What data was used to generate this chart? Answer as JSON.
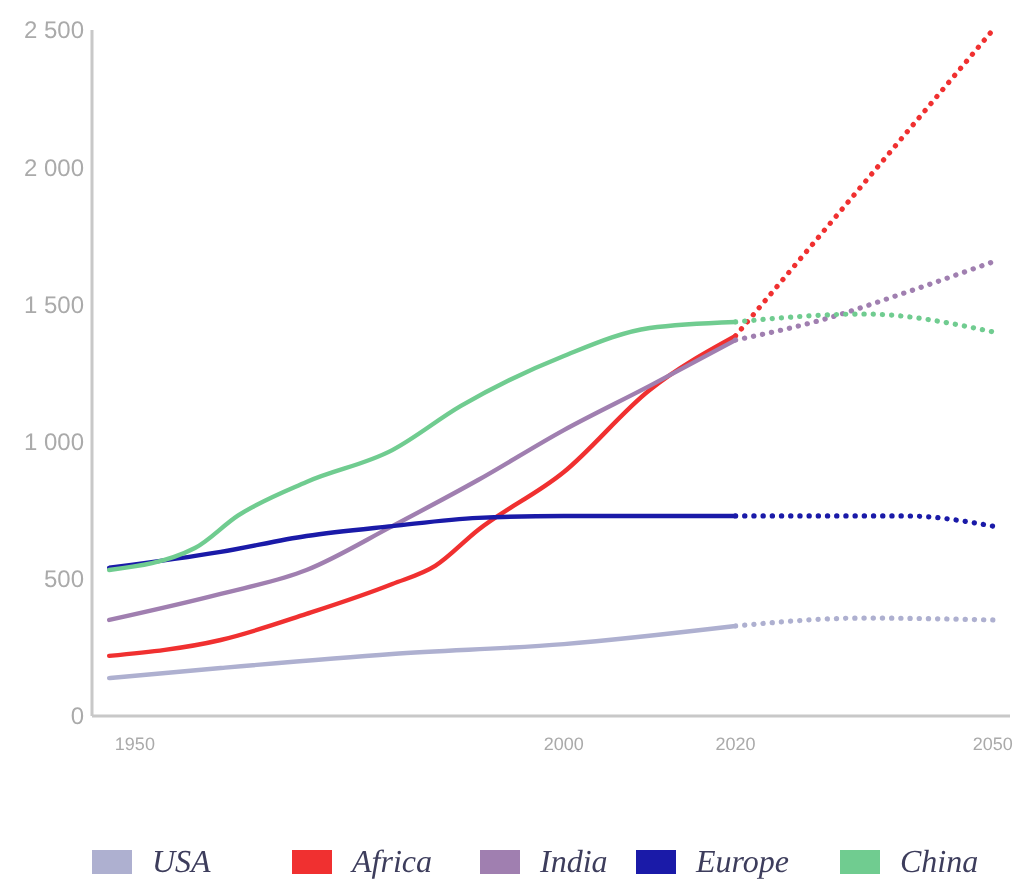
{
  "chart_data": {
    "type": "line",
    "xlim": [
      1945,
      2052
    ],
    "ylim": [
      0,
      2500
    ],
    "xticks": [
      1950,
      2000,
      2020,
      2050
    ],
    "yticks": [
      0,
      500,
      {
        "value": 1000,
        "label": "1 000"
      },
      {
        "value": 1500,
        "label": "1 500"
      },
      {
        "value": 2000,
        "label": "2 000"
      },
      {
        "value": 2500,
        "label": "2 500"
      }
    ],
    "grid": false,
    "legend": "bottom",
    "marker": "none",
    "series": [
      {
        "name": "USA",
        "color": "#aeb0d0",
        "line_style": "solid",
        "x": [
          1947,
          1960,
          1980,
          2000,
          2020
        ],
        "values": [
          138,
          175,
          226,
          262,
          328
        ]
      },
      {
        "name": "Africa",
        "color": "#f03030",
        "line_style": "solid",
        "x": [
          1947,
          1960,
          1970,
          1980,
          1985,
          1990,
          2000,
          2010,
          2020
        ],
        "values": [
          219,
          277,
          372,
          481,
          547,
          678,
          889,
          1188,
          1385
        ]
      },
      {
        "name": "India",
        "color": "#a07fb0",
        "line_style": "solid",
        "x": [
          1947,
          1960,
          1970,
          1980,
          1990,
          2000,
          2010,
          2020
        ],
        "values": [
          350,
          445,
          532,
          692,
          860,
          1042,
          1203,
          1370
        ]
      },
      {
        "name": "Europe",
        "color": "#1a1aa8",
        "line_style": "solid",
        "x": [
          1947,
          1960,
          1970,
          1980,
          1990,
          2000,
          2020
        ],
        "values": [
          540,
          598,
          656,
          692,
          722,
          729,
          729
        ]
      },
      {
        "name": "China",
        "color": "#70cc90",
        "line_style": "solid",
        "x": [
          1947,
          1957,
          1962,
          1970,
          1980,
          1988,
          2000,
          2010,
          2020
        ],
        "values": [
          532,
          612,
          730,
          853,
          969,
          1130,
          1312,
          1414,
          1436
        ]
      },
      {
        "color": "#aeb0d0",
        "line_style": "dotted",
        "x": [
          2020,
          2035,
          2050
        ],
        "values": [
          328,
          357,
          350
        ]
      },
      {
        "color": "#f03030",
        "line_style": "dotted",
        "x": [
          2020,
          2050
        ],
        "values": [
          1385,
          2500
        ]
      },
      {
        "color": "#a07fb0",
        "line_style": "dotted",
        "x": [
          2020,
          2030,
          2040,
          2050
        ],
        "values": [
          1370,
          1443,
          1545,
          1655
        ]
      },
      {
        "color": "#1a1aa8",
        "line_style": "dotted",
        "x": [
          2020,
          2040,
          2050
        ],
        "values": [
          729,
          729,
          692
        ]
      },
      {
        "color": "#70cc90",
        "line_style": "dotted",
        "x": [
          2020,
          2035,
          2050
        ],
        "values": [
          1436,
          1465,
          1400
        ]
      }
    ]
  }
}
